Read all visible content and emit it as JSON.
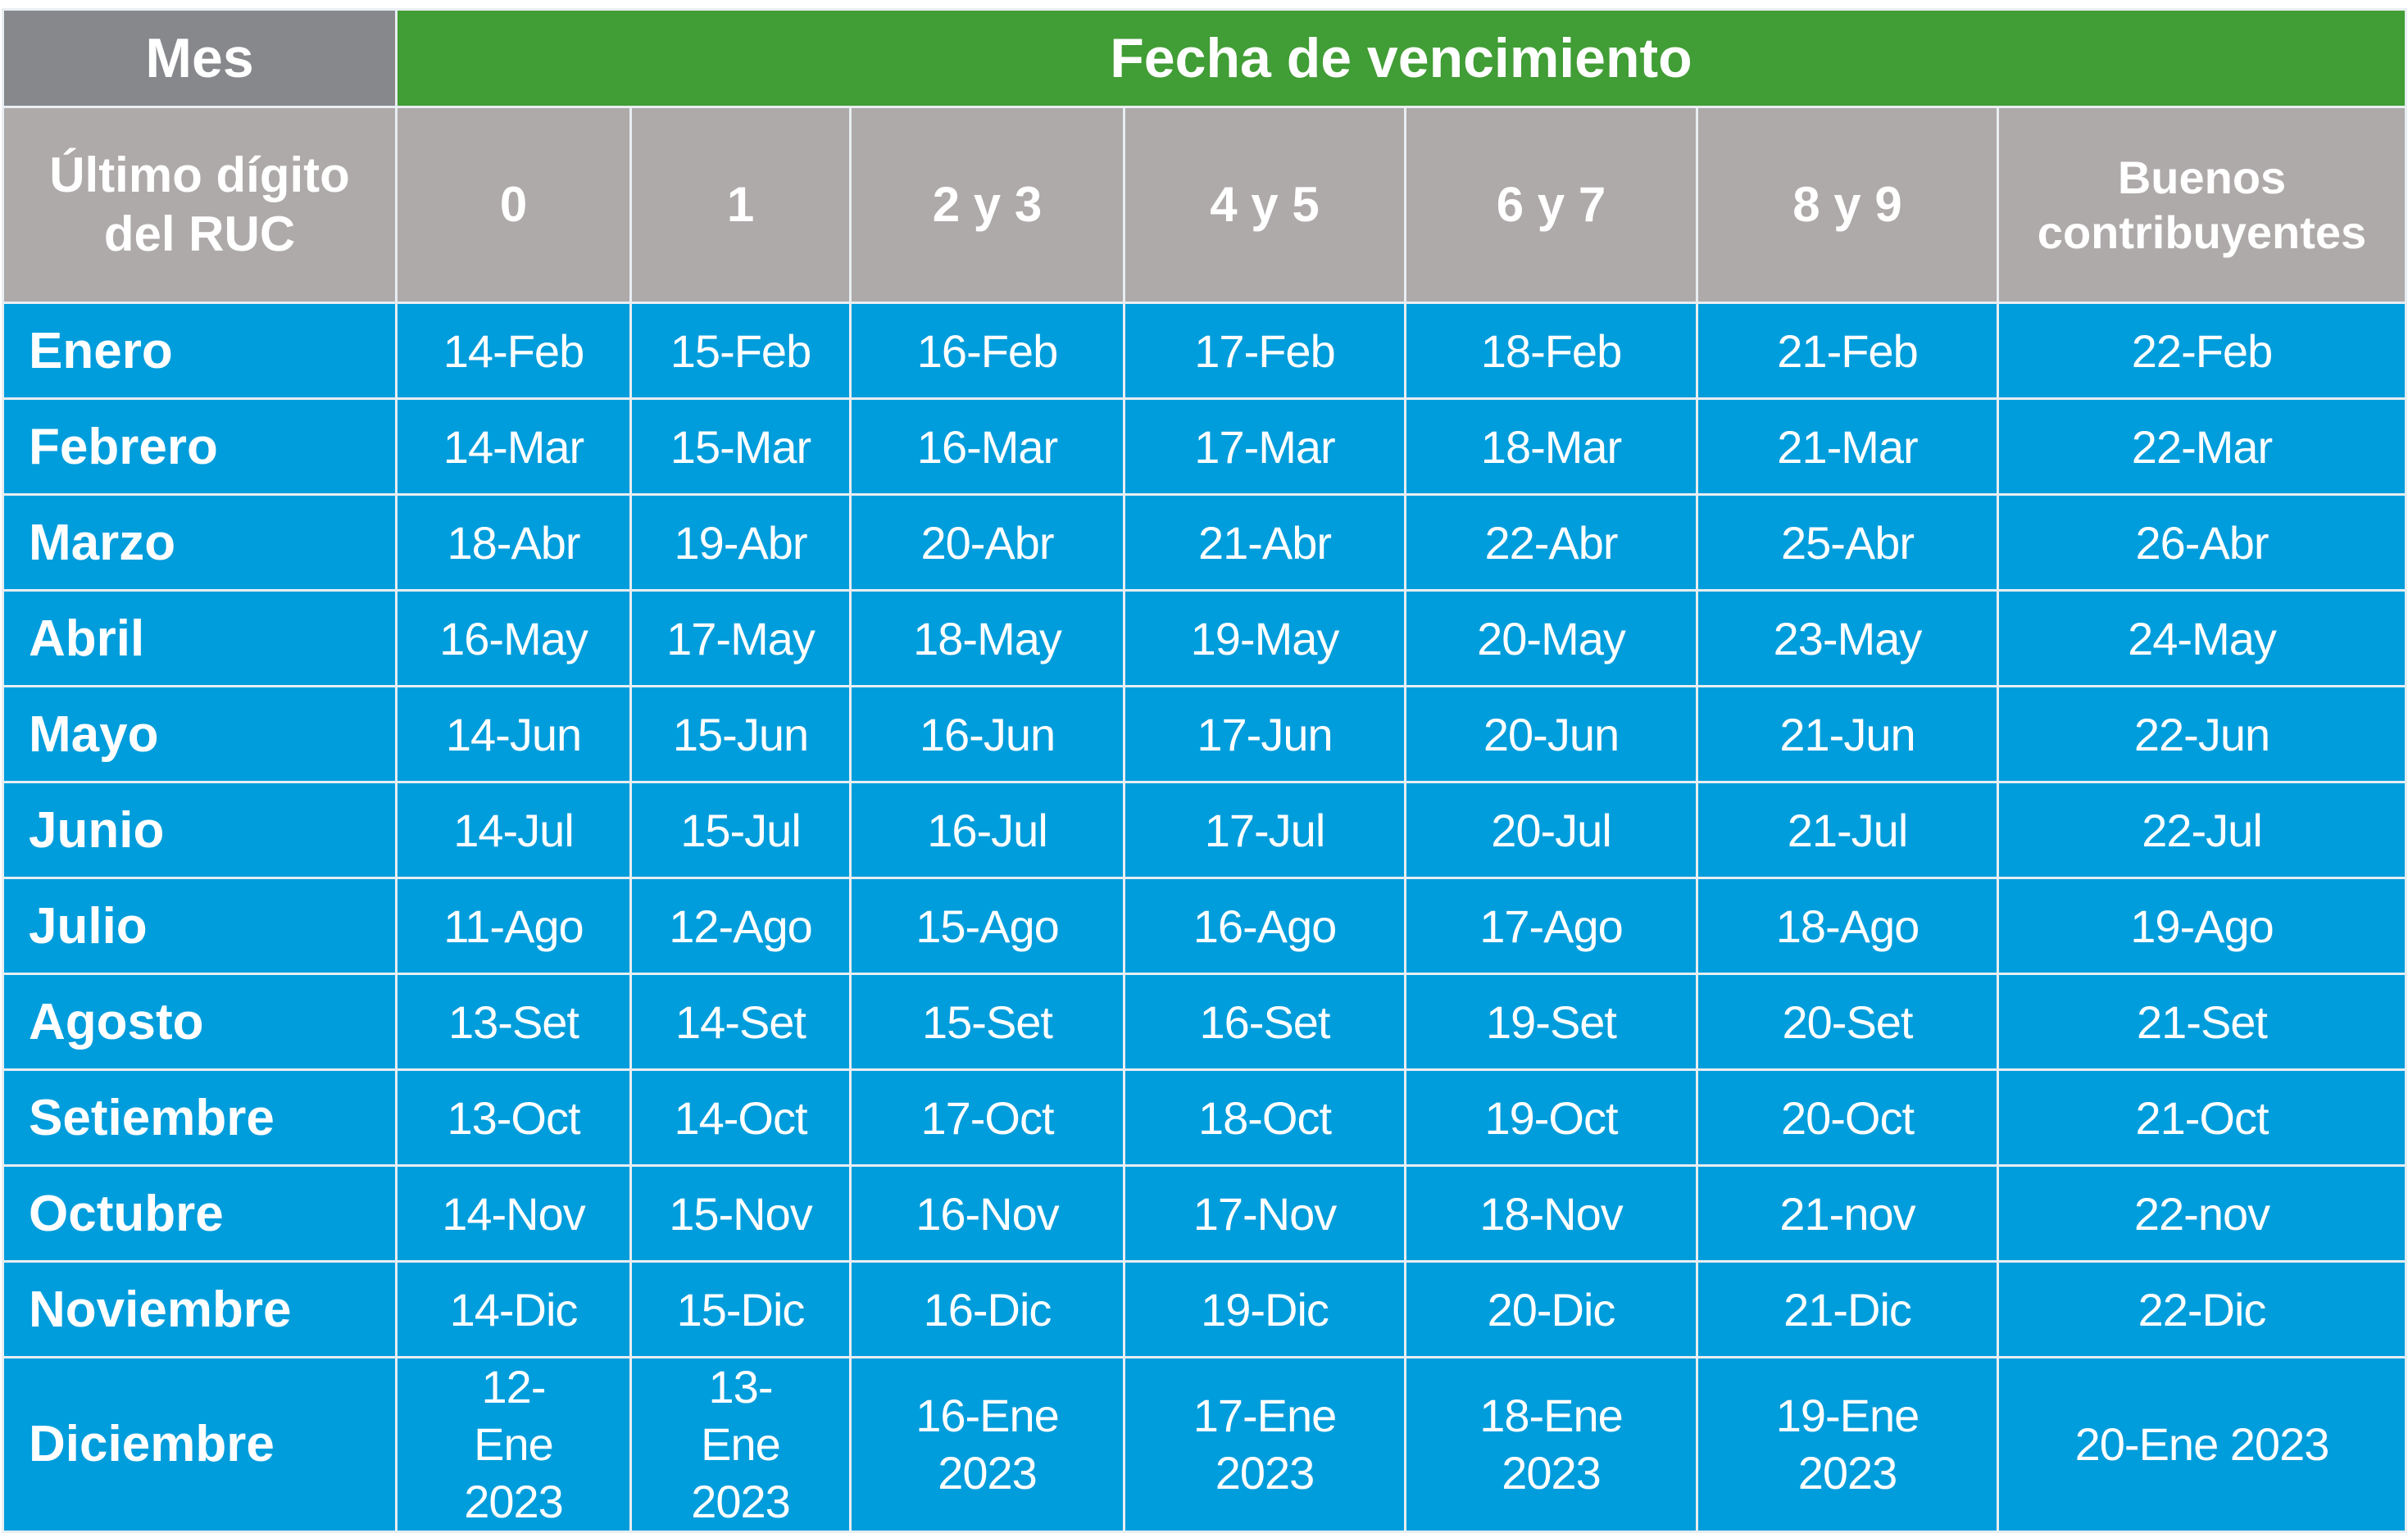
{
  "header": {
    "mes": "Mes",
    "fecha": "Fecha de vencimiento",
    "digit_label": "Último dígito del RUC",
    "columns": [
      "0",
      "1",
      "2 y 3",
      "4 y 5",
      "6 y 7",
      "8 y 9",
      "Buenos contribuyentes"
    ]
  },
  "colors": {
    "mes_header": "#87888c",
    "fecha_header": "#419d35",
    "sub_header": "#aeaaa9",
    "body": "#009ddc"
  },
  "rows": [
    {
      "month": "Enero",
      "dates": [
        "14-Feb",
        "15-Feb",
        "16-Feb",
        "17-Feb",
        "18-Feb",
        "21-Feb",
        "22-Feb"
      ]
    },
    {
      "month": "Febrero",
      "dates": [
        "14-Mar",
        "15-Mar",
        "16-Mar",
        "17-Mar",
        "18-Mar",
        "21-Mar",
        "22-Mar"
      ]
    },
    {
      "month": "Marzo",
      "dates": [
        "18-Abr",
        "19-Abr",
        "20-Abr",
        "21-Abr",
        "22-Abr",
        "25-Abr",
        "26-Abr"
      ]
    },
    {
      "month": "Abril",
      "dates": [
        "16-May",
        "17-May",
        "18-May",
        "19-May",
        "20-May",
        "23-May",
        "24-May"
      ]
    },
    {
      "month": "Mayo",
      "dates": [
        "14-Jun",
        "15-Jun",
        "16-Jun",
        "17-Jun",
        "20-Jun",
        "21-Jun",
        "22-Jun"
      ]
    },
    {
      "month": "Junio",
      "dates": [
        "14-Jul",
        "15-Jul",
        "16-Jul",
        "17-Jul",
        "20-Jul",
        "21-Jul",
        "22-Jul"
      ]
    },
    {
      "month": "Julio",
      "dates": [
        "11-Ago",
        "12-Ago",
        "15-Ago",
        "16-Ago",
        "17-Ago",
        "18-Ago",
        "19-Ago"
      ]
    },
    {
      "month": "Agosto",
      "dates": [
        "13-Set",
        "14-Set",
        "15-Set",
        "16-Set",
        "19-Set",
        "20-Set",
        "21-Set"
      ]
    },
    {
      "month": "Setiembre",
      "dates": [
        "13-Oct",
        "14-Oct",
        "17-Oct",
        "18-Oct",
        "19-Oct",
        "20-Oct",
        "21-Oct"
      ]
    },
    {
      "month": "Octubre",
      "dates": [
        "14-Nov",
        "15-Nov",
        "16-Nov",
        "17-Nov",
        "18-Nov",
        "21-nov",
        "22-nov"
      ]
    },
    {
      "month": "Noviembre",
      "dates": [
        "14-Dic",
        "15-Dic",
        "16-Dic",
        "19-Dic",
        "20-Dic",
        "21-Dic",
        "22-Dic"
      ]
    },
    {
      "month": "Diciembre",
      "dates": [
        "12-Ene 2023",
        "13-Ene 2023",
        "16-Ene 2023",
        "17-Ene 2023",
        "18-Ene 2023",
        "19-Ene 2023",
        "20-Ene 2023"
      ]
    }
  ]
}
